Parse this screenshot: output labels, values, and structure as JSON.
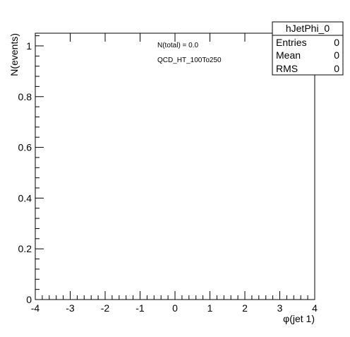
{
  "chart_data": {
    "type": "bar",
    "xlabel": "φ(jet 1)",
    "ylabel": "N(events)",
    "xlim": [
      -4,
      4
    ],
    "ylim": [
      0,
      1.05
    ],
    "x_ticks": [
      -4,
      -3,
      -2,
      -1,
      0,
      1,
      2,
      3,
      4
    ],
    "x_tick_labels": [
      "-4",
      "-3",
      "-2",
      "-1",
      "0",
      "1",
      "2",
      "3",
      "4"
    ],
    "y_ticks": [
      0,
      0.2,
      0.4,
      0.6,
      0.8,
      1
    ],
    "y_tick_labels": [
      "0",
      "0.2",
      "0.4",
      "0.6",
      "0.8",
      "1"
    ],
    "values": [],
    "grid": false,
    "annotations": [
      "N(total) = 0.0",
      "QCD_HT_100To250"
    ],
    "stats_box": {
      "title": "hJetPhi_0",
      "rows": [
        {
          "label": "Entries",
          "value": "0"
        },
        {
          "label": "Mean",
          "value": "0"
        },
        {
          "label": "RMS",
          "value": "0"
        }
      ]
    },
    "legend_position": "top-right"
  }
}
